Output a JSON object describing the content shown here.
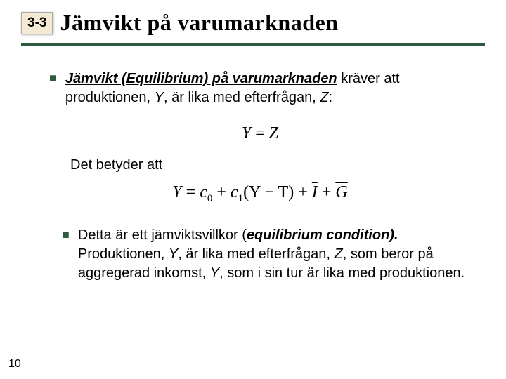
{
  "header": {
    "section": "3-3",
    "title": "Jämvikt på varumarknaden",
    "rule_color": "#2e5a3e"
  },
  "bullets": [
    {
      "lead_bold": "Jämvikt (Equilibrium) på varumarknaden",
      "rest_1": " kräver att produktionen, ",
      "y": "Y",
      "rest_2": ", är lika med efterfrågan, ",
      "z": "Z",
      "rest_3": ":"
    },
    {
      "text_1": "Detta är ett jämviktsvillkor (",
      "cond": "equilibrium condition).",
      "text_2": " Produktionen, ",
      "y": "Y",
      "text_3": ", är lika med efterfrågan, ",
      "z": "Z",
      "text_4": ", som beror på aggregerad inkomst, ",
      "y2": "Y",
      "text_5": ", som i sin tur är lika med produktionen."
    }
  ],
  "mid_text": "Det betyder att",
  "equations": {
    "eq1": {
      "Y": "Y",
      "eq": " = ",
      "Z": "Z"
    },
    "eq2": {
      "Y": "Y",
      "eq": " = ",
      "c0": "c",
      "c0s": "0",
      "plus1": " + ",
      "c1": "c",
      "c1s": "1",
      "paren": "(Y − T) + ",
      "I": "I",
      "plus2": " + ",
      "G": "G"
    }
  },
  "page_number": "10",
  "colors": {
    "bullet": "#2e5a3e",
    "section_bg": "#f3e9d4",
    "text": "#000000",
    "bg": "#ffffff"
  },
  "fonts": {
    "title_family": "Georgia, serif",
    "title_size_pt": 24,
    "body_size_pt": 15,
    "eq_family": "Times New Roman",
    "eq_size_pt": 18
  }
}
